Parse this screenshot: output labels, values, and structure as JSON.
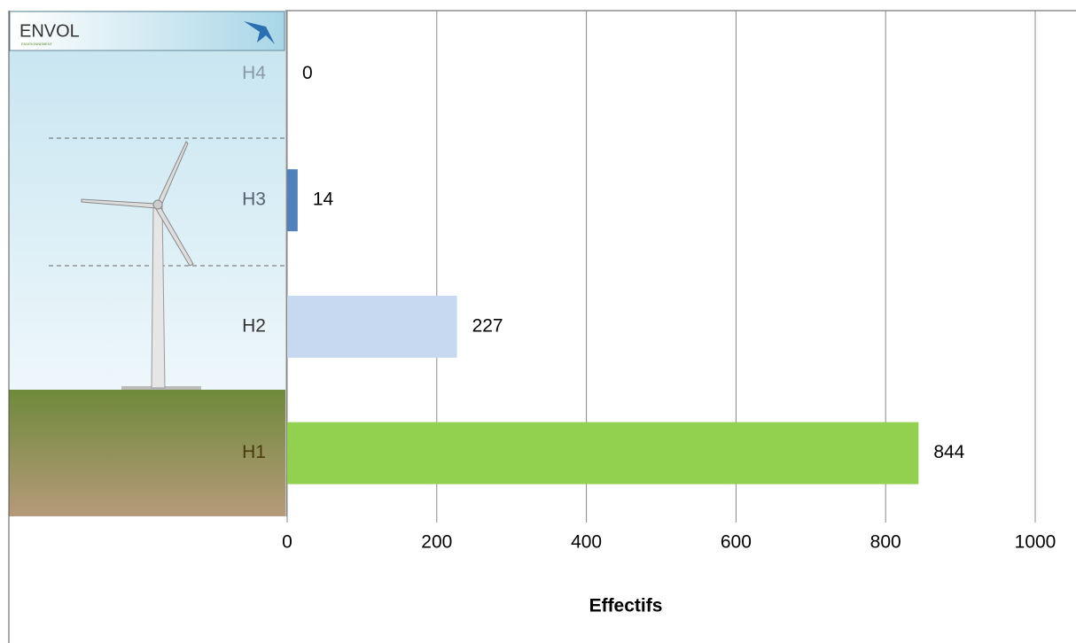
{
  "logo": {
    "name": "ENVOL",
    "tagline": "ENVIRONNEMENT"
  },
  "chart_data": {
    "type": "hbar",
    "categories": [
      "H4",
      "H3",
      "H2",
      "H1"
    ],
    "values": [
      0,
      14,
      227,
      844
    ],
    "colors": [
      "#95b3d7",
      "#4f81bd",
      "#c6d9f0",
      "#92d050"
    ],
    "xlim": [
      0,
      1000
    ],
    "xticks": [
      0,
      200,
      400,
      600,
      800,
      1000
    ],
    "xlabel": "Effectifs",
    "grid": true
  }
}
